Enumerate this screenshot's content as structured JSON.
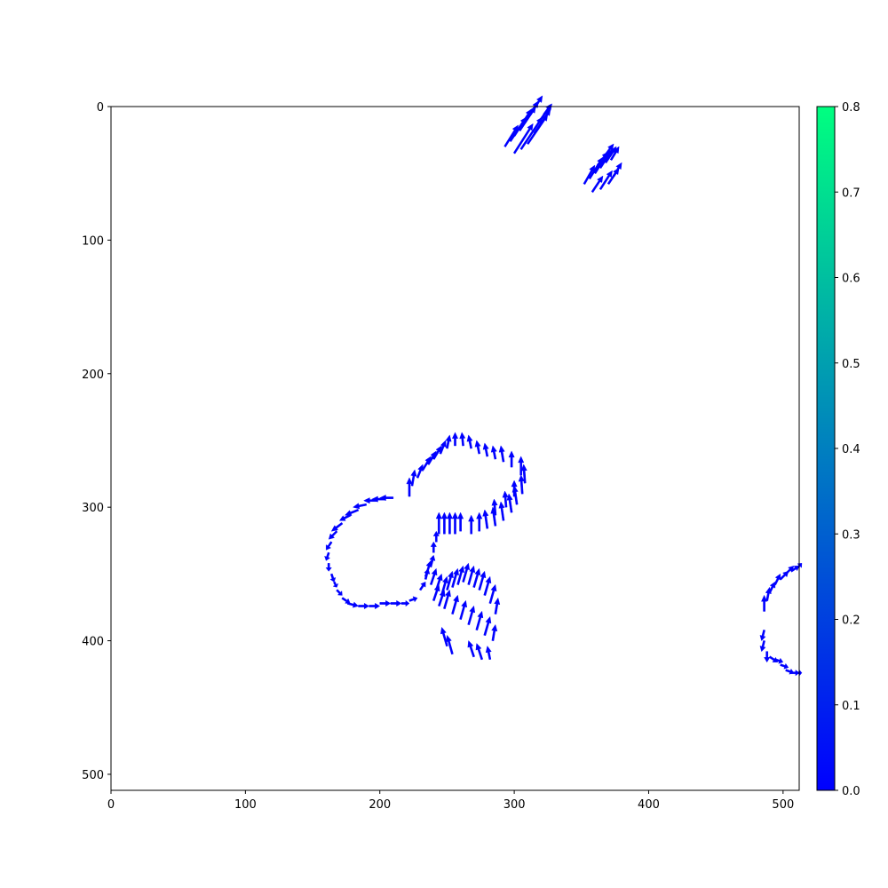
{
  "chart_data": {
    "type": "quiver",
    "title": "",
    "xlabel": "",
    "ylabel": "",
    "xlim": [
      0,
      512
    ],
    "ylim": [
      512,
      0
    ],
    "y_inverted": true,
    "grid": false,
    "arrow_color": "#0000ff",
    "x_ticks": [
      "0",
      "100",
      "200",
      "300",
      "400",
      "500"
    ],
    "y_ticks": [
      "0",
      "100",
      "200",
      "300",
      "400",
      "500"
    ],
    "colorbar": {
      "range": [
        0.0,
        0.8
      ],
      "colormap": "winter",
      "color_low": "#0000ff",
      "color_high": "#00ff80",
      "ticks": [
        "0.0",
        "0.1",
        "0.2",
        "0.3",
        "0.4",
        "0.5",
        "0.6",
        "0.7",
        "0.8"
      ]
    },
    "arrow_clusters": [
      {
        "name": "top-center",
        "points": [
          [
            293,
            30,
            10,
            -16
          ],
          [
            297,
            26,
            12,
            -18
          ],
          [
            300,
            22,
            13,
            -20
          ],
          [
            304,
            18,
            12,
            -18
          ],
          [
            308,
            12,
            10,
            -16
          ],
          [
            312,
            6,
            9,
            -14
          ],
          [
            300,
            35,
            14,
            -22
          ],
          [
            305,
            32,
            16,
            -24
          ],
          [
            310,
            28,
            15,
            -22
          ],
          [
            315,
            20,
            12,
            -18
          ],
          [
            318,
            12,
            10,
            -14
          ],
          [
            322,
            6,
            6,
            -8
          ]
        ]
      },
      {
        "name": "top-right",
        "points": [
          [
            352,
            58,
            8,
            -14
          ],
          [
            356,
            54,
            10,
            -16
          ],
          [
            360,
            50,
            10,
            -16
          ],
          [
            364,
            46,
            9,
            -14
          ],
          [
            368,
            42,
            8,
            -12
          ],
          [
            372,
            40,
            6,
            -10
          ],
          [
            358,
            64,
            8,
            -12
          ],
          [
            364,
            62,
            9,
            -14
          ],
          [
            370,
            58,
            8,
            -12
          ],
          [
            374,
            52,
            6,
            -10
          ],
          [
            362,
            44,
            8,
            -10
          ],
          [
            368,
            36,
            6,
            -8
          ]
        ]
      },
      {
        "name": "upper-loop",
        "points": [
          [
            222,
            292,
            0,
            -14
          ],
          [
            224,
            284,
            2,
            -12
          ],
          [
            228,
            278,
            4,
            -10
          ],
          [
            232,
            272,
            6,
            -10
          ],
          [
            236,
            268,
            6,
            -10
          ],
          [
            240,
            264,
            6,
            -10
          ],
          [
            245,
            260,
            4,
            -10
          ],
          [
            250,
            256,
            2,
            -10
          ],
          [
            256,
            254,
            0,
            -10
          ],
          [
            262,
            254,
            -1,
            -10
          ],
          [
            268,
            256,
            -2,
            -10
          ],
          [
            274,
            260,
            -2,
            -10
          ],
          [
            280,
            262,
            -2,
            -10
          ],
          [
            286,
            264,
            -2,
            -10
          ],
          [
            292,
            266,
            -2,
            -12
          ],
          [
            298,
            270,
            0,
            -12
          ],
          [
            305,
            276,
            0,
            -14
          ],
          [
            308,
            282,
            -1,
            -14
          ],
          [
            306,
            290,
            -1,
            -14
          ],
          [
            302,
            298,
            -2,
            -14
          ],
          [
            298,
            304,
            -2,
            -14
          ],
          [
            292,
            310,
            -2,
            -14
          ],
          [
            286,
            314,
            -2,
            -14
          ],
          [
            280,
            316,
            -2,
            -14
          ],
          [
            274,
            318,
            0,
            -14
          ],
          [
            268,
            320,
            0,
            -14
          ],
          [
            252,
            320,
            0,
            -16
          ],
          [
            248,
            320,
            0,
            -16
          ],
          [
            244,
            320,
            0,
            -16
          ],
          [
            256,
            320,
            0,
            -16
          ],
          [
            260,
            318,
            0,
            -14
          ],
          [
            300,
            292,
            0,
            -12
          ],
          [
            294,
            300,
            -1,
            -12
          ],
          [
            286,
            306,
            -1,
            -12
          ]
        ]
      },
      {
        "name": "left-loop",
        "points": [
          [
            210,
            293,
            -10,
            0
          ],
          [
            204,
            294,
            -10,
            0
          ],
          [
            198,
            295,
            -10,
            0
          ],
          [
            190,
            298,
            -10,
            2
          ],
          [
            184,
            302,
            -10,
            4
          ],
          [
            178,
            306,
            -8,
            4
          ],
          [
            172,
            312,
            -8,
            6
          ],
          [
            168,
            318,
            -6,
            6
          ],
          [
            164,
            326,
            -4,
            6
          ],
          [
            162,
            334,
            -2,
            6
          ],
          [
            162,
            342,
            0,
            6
          ],
          [
            164,
            350,
            2,
            6
          ],
          [
            166,
            356,
            2,
            4
          ],
          [
            168,
            362,
            4,
            4
          ],
          [
            172,
            368,
            6,
            4
          ],
          [
            176,
            372,
            8,
            2
          ],
          [
            184,
            374,
            8,
            0
          ],
          [
            192,
            374,
            8,
            0
          ],
          [
            200,
            372,
            8,
            0
          ],
          [
            208,
            372,
            8,
            0
          ],
          [
            216,
            372,
            6,
            0
          ],
          [
            222,
            370,
            6,
            -2
          ],
          [
            230,
            362,
            4,
            -6
          ],
          [
            234,
            354,
            2,
            -8
          ],
          [
            238,
            344,
            2,
            -8
          ],
          [
            240,
            334,
            0,
            -8
          ],
          [
            242,
            326,
            0,
            -8
          ]
        ]
      },
      {
        "name": "lower-lobe",
        "points": [
          [
            234,
            352,
            4,
            -12
          ],
          [
            238,
            358,
            4,
            -12
          ],
          [
            242,
            362,
            4,
            -12
          ],
          [
            246,
            366,
            4,
            -14
          ],
          [
            250,
            362,
            4,
            -14
          ],
          [
            254,
            360,
            4,
            -14
          ],
          [
            258,
            358,
            4,
            -14
          ],
          [
            262,
            356,
            4,
            -14
          ],
          [
            266,
            358,
            4,
            -14
          ],
          [
            270,
            360,
            4,
            -14
          ],
          [
            274,
            362,
            4,
            -14
          ],
          [
            278,
            366,
            4,
            -14
          ],
          [
            282,
            372,
            4,
            -14
          ],
          [
            286,
            380,
            2,
            -12
          ],
          [
            248,
            376,
            4,
            -14
          ],
          [
            254,
            380,
            4,
            -14
          ],
          [
            260,
            384,
            4,
            -14
          ],
          [
            266,
            388,
            4,
            -14
          ],
          [
            272,
            392,
            4,
            -14
          ],
          [
            278,
            396,
            4,
            -14
          ],
          [
            284,
            400,
            2,
            -12
          ],
          [
            250,
            404,
            -4,
            -14
          ],
          [
            254,
            410,
            -4,
            -14
          ],
          [
            270,
            412,
            -4,
            -12
          ],
          [
            276,
            414,
            -4,
            -12
          ],
          [
            282,
            414,
            -2,
            -10
          ],
          [
            240,
            370,
            4,
            -12
          ],
          [
            244,
            374,
            4,
            -12
          ]
        ]
      },
      {
        "name": "right-edge",
        "points": [
          [
            486,
            378,
            0,
            -12
          ],
          [
            488,
            370,
            2,
            -10
          ],
          [
            490,
            364,
            4,
            -8
          ],
          [
            494,
            358,
            4,
            -8
          ],
          [
            498,
            354,
            6,
            -6
          ],
          [
            502,
            350,
            6,
            -6
          ],
          [
            506,
            348,
            6,
            -4
          ],
          [
            510,
            346,
            4,
            -4
          ],
          [
            486,
            392,
            -2,
            8
          ],
          [
            486,
            400,
            -2,
            8
          ],
          [
            488,
            408,
            0,
            8
          ],
          [
            490,
            412,
            6,
            4
          ],
          [
            494,
            414,
            6,
            2
          ],
          [
            498,
            418,
            6,
            2
          ],
          [
            502,
            422,
            6,
            2
          ],
          [
            506,
            424,
            6,
            0
          ],
          [
            510,
            424,
            4,
            0
          ]
        ]
      }
    ]
  }
}
